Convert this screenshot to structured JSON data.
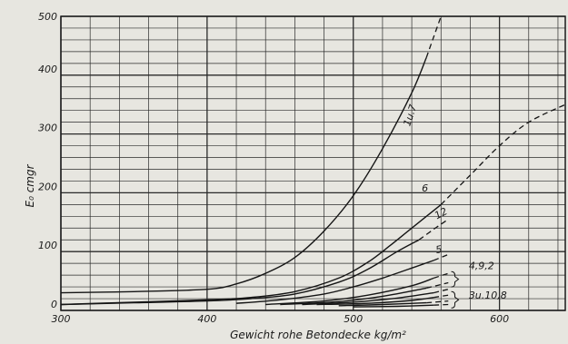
{
  "chart_data": {
    "type": "line",
    "title": "",
    "xlabel": "Gewicht rohe Betondecke kg/m²",
    "ylabel": "E₀ cmgr",
    "xlim": [
      300,
      645
    ],
    "ylim": [
      0,
      500
    ],
    "x_ticks": [
      "300",
      "400",
      "500",
      "600"
    ],
    "y_ticks": [
      "0",
      "100",
      "200",
      "300",
      "400",
      "500"
    ],
    "grid": true,
    "series": [
      {
        "name": "1u.7",
        "solid": {
          "x": [
            300,
            350,
            400,
            420,
            440,
            460,
            480,
            500,
            520,
            540,
            550
          ],
          "y": [
            30,
            32,
            36,
            45,
            63,
            90,
            135,
            195,
            275,
            370,
            430
          ]
        },
        "dashed": {
          "x": [
            550,
            555,
            560
          ],
          "y": [
            430,
            465,
            500
          ]
        }
      },
      {
        "name": "6",
        "solid": {
          "x": [
            300,
            350,
            400,
            430,
            460,
            490,
            510,
            525,
            540,
            560
          ],
          "y": [
            10,
            14,
            18,
            22,
            32,
            55,
            82,
            110,
            140,
            180
          ]
        },
        "dashed": {
          "x": [
            560,
            580,
            600,
            620,
            645
          ],
          "y": [
            180,
            230,
            280,
            320,
            350
          ]
        }
      },
      {
        "name": "12",
        "solid": {
          "x": [
            300,
            350,
            400,
            430,
            460,
            490,
            510,
            530,
            545
          ],
          "y": [
            10,
            13,
            16,
            20,
            28,
            48,
            70,
            100,
            120
          ]
        },
        "dashed": {
          "x": [
            545,
            555,
            565
          ],
          "y": [
            120,
            138,
            155
          ]
        }
      },
      {
        "name": "5",
        "solid": {
          "x": [
            420,
            450,
            480,
            500,
            520,
            540,
            555
          ],
          "y": [
            12,
            18,
            28,
            40,
            55,
            72,
            85
          ]
        },
        "dashed": {
          "x": [
            555,
            565
          ],
          "y": [
            85,
            95
          ]
        }
      },
      {
        "name": "4,9,2",
        "solid": {
          "x": [
            440,
            480,
            510,
            540,
            555
          ],
          "y": [
            10,
            16,
            26,
            42,
            55
          ]
        },
        "dashed": {
          "x": [
            555,
            565
          ],
          "y": [
            55,
            63
          ]
        }
      },
      {
        "name": "",
        "solid": {
          "x": [
            450,
            490,
            520,
            550
          ],
          "y": [
            10,
            15,
            24,
            38
          ]
        },
        "dashed": {
          "x": [
            550,
            565
          ],
          "y": [
            38,
            47
          ]
        }
      },
      {
        "name": "",
        "solid": {
          "x": [
            465,
            500,
            530,
            555
          ],
          "y": [
            10,
            14,
            21,
            30
          ]
        },
        "dashed": {
          "x": [
            555,
            565
          ],
          "y": [
            30,
            36
          ]
        }
      },
      {
        "name": "",
        "solid": {
          "x": [
            475,
            510,
            540,
            555
          ],
          "y": [
            10,
            12,
            17,
            22
          ]
        },
        "dashed": {
          "x": [
            555,
            565
          ],
          "y": [
            22,
            26
          ]
        }
      },
      {
        "name": "",
        "solid": {
          "x": [
            490,
            520,
            550
          ],
          "y": [
            8,
            10,
            13
          ]
        },
        "dashed": {
          "x": [
            550,
            565
          ],
          "y": [
            13,
            16
          ]
        }
      },
      {
        "name": "3u.10,8",
        "solid": {
          "x": [
            500,
            530,
            555
          ],
          "y": [
            6,
            7,
            9
          ]
        },
        "dashed": {
          "x": [
            555,
            565
          ],
          "y": [
            9,
            10
          ]
        }
      }
    ]
  }
}
